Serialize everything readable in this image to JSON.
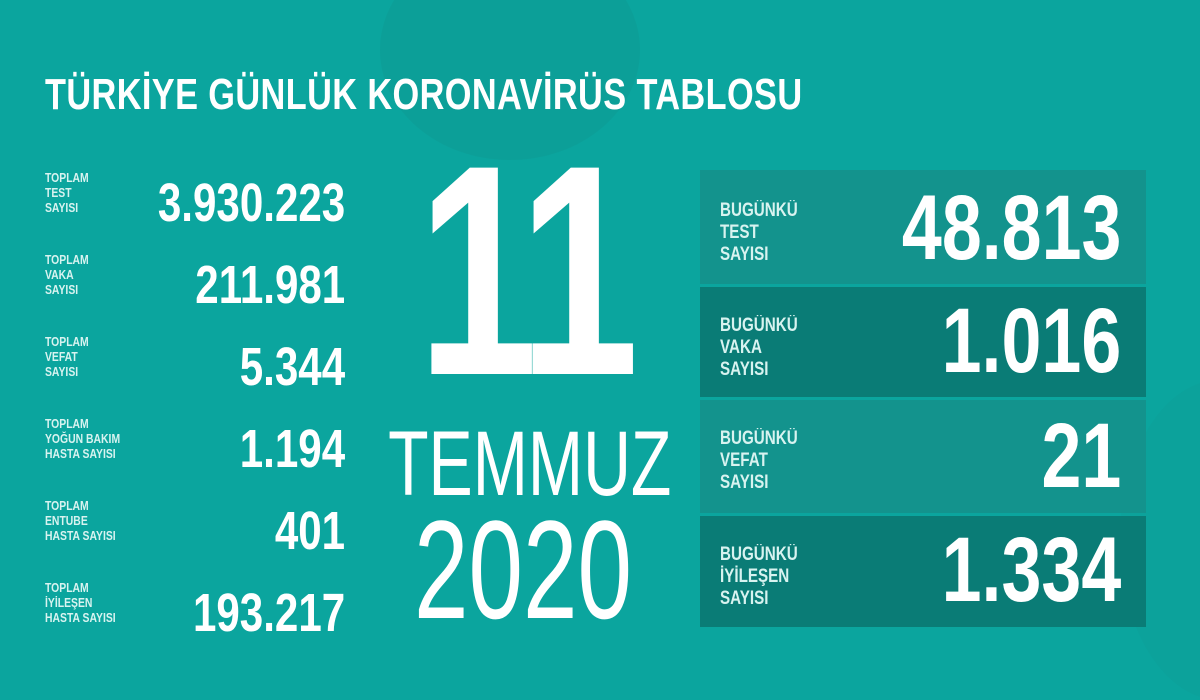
{
  "title": "TÜRKİYE GÜNLÜK KORONAVİRÜS TABLOSU",
  "colors": {
    "background": "#0ba59e",
    "box_light": "#13938d",
    "box_dark": "#0a7c76"
  },
  "totals": [
    {
      "label": "TOPLAM\nTEST\nSAYISI",
      "value": "3.930.223"
    },
    {
      "label": "TOPLAM\nVAKA\nSAYISI",
      "value": "211.981"
    },
    {
      "label": "TOPLAM\nVEFAT\nSAYISI",
      "value": "5.344"
    },
    {
      "label": "TOPLAM\nYOĞUN BAKIM\nHASTA SAYISI",
      "value": "1.194"
    },
    {
      "label": "TOPLAM\nENTUBE\nHASTA SAYISI",
      "value": "401"
    },
    {
      "label": "TOPLAM\nİYİLEŞEN\nHASTA SAYISI",
      "value": "193.217"
    }
  ],
  "date": {
    "day": "11",
    "month": "TEMMUZ",
    "year": "2020"
  },
  "today": [
    {
      "label": "BUGÜNKÜ\nTEST\nSAYISI",
      "value": "48.813"
    },
    {
      "label": "BUGÜNKÜ\nVAKA\nSAYISI",
      "value": "1.016"
    },
    {
      "label": "BUGÜNKÜ\nVEFAT\nSAYISI",
      "value": "21"
    },
    {
      "label": "BUGÜNKÜ\nİYİLEŞEN\nSAYISI",
      "value": "1.334"
    }
  ]
}
